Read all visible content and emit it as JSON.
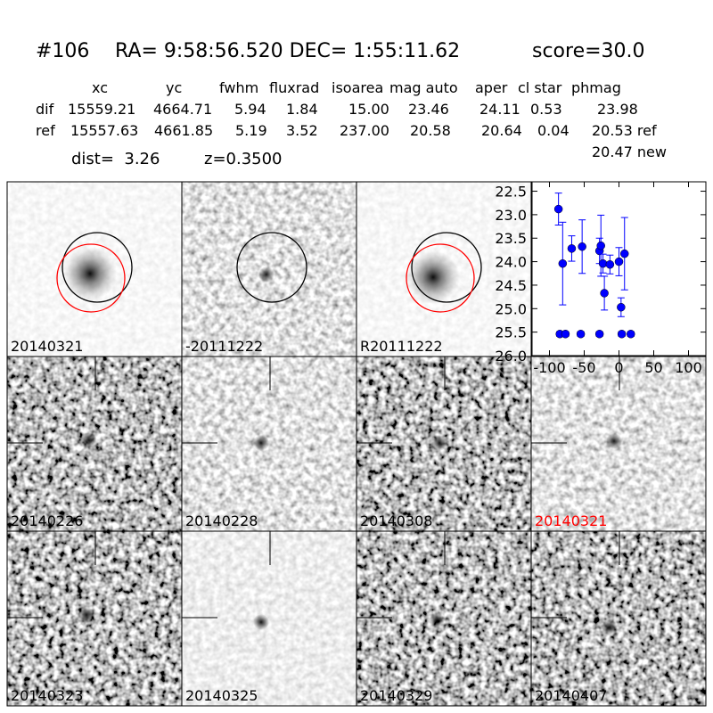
{
  "header": {
    "id": "#106",
    "coords": "RA= 9:58:56.520 DEC= 1:55:11.62",
    "score": "score=30.0"
  },
  "table": {
    "columns": [
      "xc",
      "yc",
      "fwhm",
      "fluxrad",
      "isoarea",
      "mag auto",
      "aper",
      "cl star",
      "phmag"
    ],
    "rows": [
      [
        "dif",
        "15559.21",
        "4664.71",
        "5.94",
        "1.84",
        "15.00",
        "23.46",
        "24.11",
        "0.53",
        "23.98"
      ],
      [
        "ref",
        "15557.63",
        "4661.85",
        "5.19",
        "3.52",
        "237.00",
        "20.58",
        "20.64",
        "0.04",
        "20.53 ref"
      ]
    ],
    "extra": "20.47 new"
  },
  "info": {
    "dist": "dist=  3.26",
    "z": "z=0.3500"
  },
  "panels": [
    "20140321",
    "-20111222",
    "R20111222",
    "20140226",
    "20140228",
    "20140308",
    "20140321",
    "20140323",
    "20140325",
    "20140329",
    "20140407"
  ],
  "chart_data": {
    "type": "errorbar-scatter",
    "series": [
      {
        "color": "#0000ff",
        "x": [
          -87,
          -81,
          -68,
          -53,
          -28,
          -26,
          -23,
          -21,
          -13,
          0,
          3,
          8,
          -85,
          -77,
          -55,
          -28,
          4,
          17
        ],
        "values": [
          22.88,
          24.04,
          23.72,
          23.68,
          23.77,
          23.66,
          24.04,
          24.67,
          24.06,
          24.0,
          24.97,
          23.83,
          25.54,
          25.54,
          25.54,
          25.54,
          25.54,
          25.54
        ],
        "errors": [
          0.34,
          0.88,
          0.27,
          0.57,
          0.27,
          0.65,
          0.2,
          0.36,
          0.2,
          0.3,
          0.2,
          0.77,
          0.05,
          0.05,
          0.05,
          0.05,
          0.05,
          0.05
        ]
      }
    ],
    "xlim": [
      -125,
      125
    ],
    "xticks": [
      -100,
      -50,
      0,
      50,
      100
    ],
    "ylim": [
      26.0,
      22.3
    ],
    "yticks": [
      {
        "value": 22.5,
        "label": "22.5"
      },
      {
        "value": 23.0,
        "label": "23.0"
      },
      {
        "value": 23.5,
        "label": "23.5"
      },
      {
        "value": 24.0,
        "label": "24.0"
      },
      {
        "value": 24.5,
        "label": "24.5"
      },
      {
        "value": 25.0,
        "label": "25.0"
      },
      {
        "value": 25.5,
        "label": "25.5"
      },
      {
        "value": 26.0,
        "label": "26.0"
      }
    ],
    "grid": false
  }
}
